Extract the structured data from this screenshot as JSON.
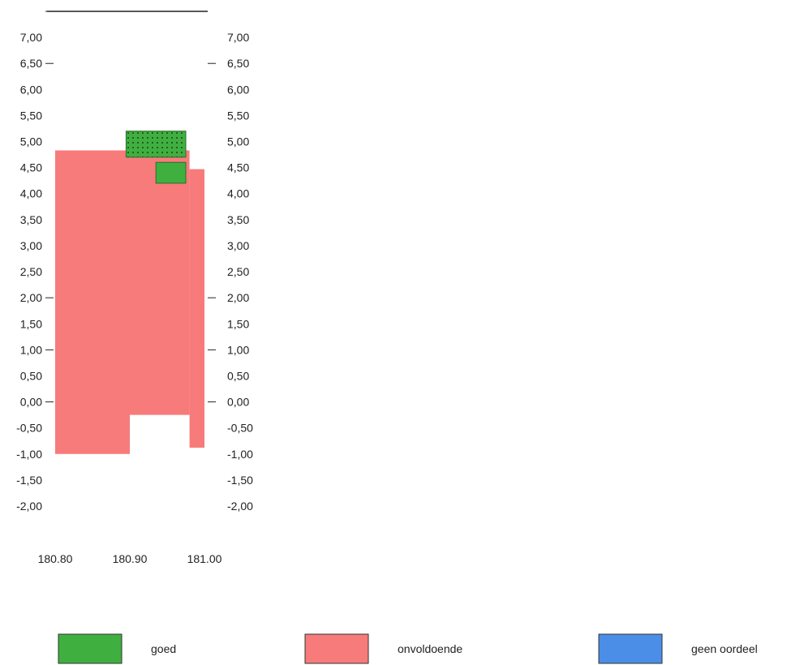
{
  "chart_data": {
    "type": "bar",
    "title": "",
    "xlabel": "",
    "ylabel": "",
    "ylim": [
      -2.0,
      7.5
    ],
    "xlim": [
      180.8,
      181.0
    ],
    "y_ticks": [
      "7,00",
      "6,50",
      "6,00",
      "5,50",
      "5,00",
      "4,50",
      "4,00",
      "3,50",
      "3,00",
      "2,50",
      "2,00",
      "1,50",
      "1,00",
      "0,50",
      "0,00",
      "-0,50",
      "-1,00",
      "-1,50",
      "-2,00"
    ],
    "y_tick_values": [
      7.0,
      6.5,
      6.0,
      5.5,
      5.0,
      4.5,
      4.0,
      3.5,
      3.0,
      2.5,
      2.0,
      1.5,
      1.0,
      0.5,
      0.0,
      -0.5,
      -1.0,
      -1.5,
      -2.0
    ],
    "left_major_ticks": [
      7.5,
      6.5,
      2.0,
      1.0,
      0.0
    ],
    "right_major_ticks": [
      6.5,
      2.0,
      1.0,
      0.0
    ],
    "top_line_value": 7.5,
    "x_ticks": [
      "180.80",
      "180.90",
      "181.00"
    ],
    "x_tick_values": [
      180.8,
      180.9,
      181.0
    ],
    "series": [
      {
        "name": "onvoldoende",
        "color": "#f77b7b",
        "rects": [
          {
            "x0": 180.8,
            "x1": 180.9,
            "y0": -1.0,
            "y1": 4.83
          },
          {
            "x0": 180.9,
            "x1": 180.98,
            "y0": -0.25,
            "y1": 4.83
          },
          {
            "x0": 180.98,
            "x1": 181.0,
            "y0": -0.88,
            "y1": 4.47
          }
        ]
      },
      {
        "name": "goed",
        "color": "#3fb03f",
        "rects": [
          {
            "x0": 180.895,
            "x1": 180.975,
            "y0": 4.7,
            "y1": 5.2,
            "dotted": true
          },
          {
            "x0": 180.935,
            "x1": 180.975,
            "y0": 4.2,
            "y1": 4.6,
            "dotted": false
          }
        ]
      }
    ],
    "legend": [
      {
        "label": "goed",
        "color": "#3fb03f"
      },
      {
        "label": "onvoldoende",
        "color": "#f77b7b"
      },
      {
        "label": "geen oordeel",
        "color": "#4a8ee8"
      }
    ],
    "legend_position": "bottom",
    "grid": false
  }
}
